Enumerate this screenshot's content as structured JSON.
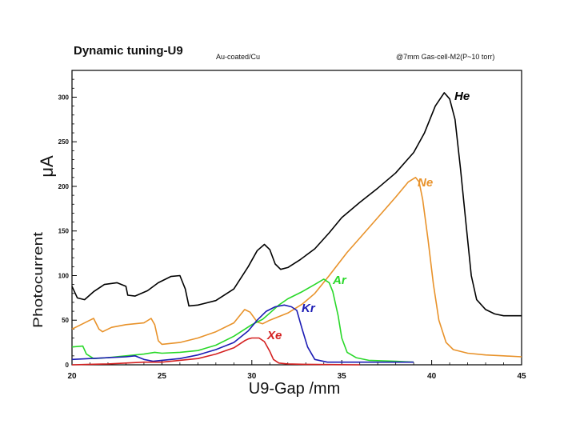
{
  "header": {
    "title": "Dynamic tuning-U9",
    "note_left": "Au-coated/Cu",
    "note_right": "@7mm Gas-cell-M2(P~10 torr)"
  },
  "chart_data": {
    "type": "line",
    "title": "Dynamic tuning-U9",
    "xlabel": "U9-Gap /mm",
    "ylabel": "μA",
    "ylabel_overlay": "Photocurrent",
    "xlim": [
      20,
      45
    ],
    "ylim": [
      0,
      330
    ],
    "xticks": [
      20,
      25,
      30,
      35,
      40,
      45
    ],
    "yticks": [
      0,
      50,
      100,
      150,
      200,
      250,
      300
    ],
    "grid": false,
    "series": [
      {
        "name": "He",
        "color": "#000000",
        "label_color": "#000000",
        "points": [
          [
            20,
            88
          ],
          [
            20.3,
            75
          ],
          [
            20.7,
            73
          ],
          [
            21.2,
            82
          ],
          [
            21.8,
            90
          ],
          [
            22.5,
            92
          ],
          [
            23,
            88
          ],
          [
            23.1,
            78
          ],
          [
            23.5,
            77
          ],
          [
            24.2,
            83
          ],
          [
            24.8,
            92
          ],
          [
            25.5,
            99
          ],
          [
            26,
            100
          ],
          [
            26.3,
            85
          ],
          [
            26.5,
            66
          ],
          [
            27,
            67
          ],
          [
            28,
            72
          ],
          [
            29,
            85
          ],
          [
            29.8,
            110
          ],
          [
            30.3,
            128
          ],
          [
            30.7,
            135
          ],
          [
            31,
            129
          ],
          [
            31.3,
            113
          ],
          [
            31.6,
            107
          ],
          [
            32,
            109
          ],
          [
            32.7,
            118
          ],
          [
            33.5,
            130
          ],
          [
            34.3,
            148
          ],
          [
            35,
            165
          ],
          [
            36,
            182
          ],
          [
            37,
            198
          ],
          [
            38,
            215
          ],
          [
            39,
            238
          ],
          [
            39.6,
            260
          ],
          [
            40.2,
            290
          ],
          [
            40.7,
            305
          ],
          [
            41,
            298
          ],
          [
            41.3,
            275
          ],
          [
            41.6,
            220
          ],
          [
            41.9,
            160
          ],
          [
            42.2,
            100
          ],
          [
            42.5,
            73
          ],
          [
            43,
            62
          ],
          [
            43.5,
            57
          ],
          [
            44,
            55
          ],
          [
            45,
            55
          ]
        ]
      },
      {
        "name": "Ne",
        "color": "#e8922a",
        "label_color": "#e8922a",
        "points": [
          [
            20,
            40
          ],
          [
            20.5,
            45
          ],
          [
            21,
            50
          ],
          [
            21.2,
            52
          ],
          [
            21.5,
            40
          ],
          [
            21.7,
            37
          ],
          [
            22.2,
            42
          ],
          [
            23,
            45
          ],
          [
            24,
            47
          ],
          [
            24.4,
            52
          ],
          [
            24.6,
            45
          ],
          [
            24.8,
            27
          ],
          [
            25,
            23
          ],
          [
            26,
            25
          ],
          [
            27,
            30
          ],
          [
            28,
            37
          ],
          [
            29,
            47
          ],
          [
            29.6,
            62
          ],
          [
            29.9,
            59
          ],
          [
            30.3,
            48
          ],
          [
            30.6,
            46
          ],
          [
            31,
            50
          ],
          [
            32,
            58
          ],
          [
            32.8,
            68
          ],
          [
            33.5,
            80
          ],
          [
            34.3,
            100
          ],
          [
            35.3,
            126
          ],
          [
            36,
            142
          ],
          [
            37,
            165
          ],
          [
            38,
            188
          ],
          [
            38.7,
            205
          ],
          [
            39.1,
            210
          ],
          [
            39.3,
            205
          ],
          [
            39.5,
            185
          ],
          [
            39.8,
            140
          ],
          [
            40.1,
            90
          ],
          [
            40.4,
            50
          ],
          [
            40.8,
            25
          ],
          [
            41.2,
            17
          ],
          [
            42,
            13
          ],
          [
            43,
            11
          ],
          [
            44,
            10
          ],
          [
            45,
            9
          ]
        ]
      },
      {
        "name": "Ar",
        "color": "#29d829",
        "label_color": "#29d829",
        "points": [
          [
            20,
            20
          ],
          [
            20.6,
            21
          ],
          [
            20.8,
            12
          ],
          [
            21.2,
            7
          ],
          [
            22,
            8
          ],
          [
            23,
            10
          ],
          [
            24,
            12
          ],
          [
            24.6,
            14
          ],
          [
            25,
            13
          ],
          [
            26,
            14
          ],
          [
            27,
            16
          ],
          [
            28,
            22
          ],
          [
            29,
            32
          ],
          [
            30,
            45
          ],
          [
            30.6,
            51
          ],
          [
            31,
            58
          ],
          [
            31.5,
            67
          ],
          [
            32,
            74
          ],
          [
            32.8,
            82
          ],
          [
            33.5,
            90
          ],
          [
            34,
            96
          ],
          [
            34.3,
            92
          ],
          [
            34.5,
            82
          ],
          [
            34.8,
            55
          ],
          [
            35,
            30
          ],
          [
            35.3,
            14
          ],
          [
            35.8,
            8
          ],
          [
            36.5,
            5
          ],
          [
            38,
            4
          ],
          [
            39,
            3
          ]
        ]
      },
      {
        "name": "Kr",
        "color": "#1c1cb4",
        "label_color": "#1c1cb4",
        "points": [
          [
            20,
            6
          ],
          [
            21,
            7
          ],
          [
            22,
            8
          ],
          [
            23,
            9
          ],
          [
            23.5,
            10
          ],
          [
            24,
            6
          ],
          [
            24.5,
            4
          ],
          [
            25,
            5
          ],
          [
            26,
            7
          ],
          [
            27,
            11
          ],
          [
            28,
            17
          ],
          [
            29,
            25
          ],
          [
            29.8,
            38
          ],
          [
            30.3,
            50
          ],
          [
            30.8,
            60
          ],
          [
            31.3,
            65
          ],
          [
            31.8,
            67
          ],
          [
            32.2,
            65
          ],
          [
            32.5,
            61
          ],
          [
            32.8,
            40
          ],
          [
            33.1,
            20
          ],
          [
            33.5,
            6
          ],
          [
            34.2,
            3
          ],
          [
            35,
            3
          ],
          [
            36,
            3
          ],
          [
            38,
            3
          ],
          [
            39,
            3
          ]
        ]
      },
      {
        "name": "Xe",
        "color": "#d42020",
        "label_color": "#d42020",
        "points": [
          [
            20,
            0
          ],
          [
            21,
            0.5
          ],
          [
            22,
            1
          ],
          [
            23,
            2
          ],
          [
            24,
            3
          ],
          [
            25,
            3
          ],
          [
            26,
            5
          ],
          [
            27,
            7
          ],
          [
            28,
            12
          ],
          [
            29,
            19
          ],
          [
            29.6,
            27
          ],
          [
            29.8,
            29
          ],
          [
            30,
            30
          ],
          [
            30.4,
            30
          ],
          [
            30.7,
            26
          ],
          [
            31,
            15
          ],
          [
            31.2,
            6
          ],
          [
            31.5,
            2
          ],
          [
            32,
            1
          ],
          [
            33,
            0.5
          ],
          [
            36,
            0
          ]
        ]
      }
    ],
    "series_labels": [
      "He",
      "Ne",
      "Ar",
      "Kr",
      "Xe"
    ]
  }
}
